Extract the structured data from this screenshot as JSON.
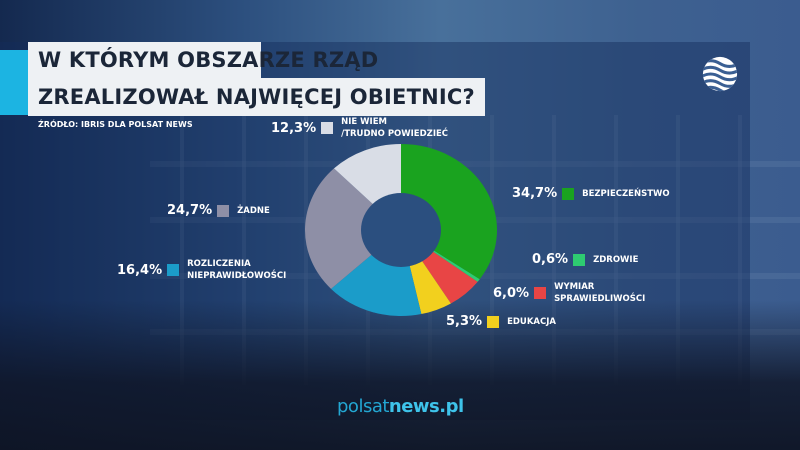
{
  "header": {
    "title_line1": "W KTÓRYM OBSZARZE RZĄD",
    "title_line2": "ZREALIZOWAŁ NAJWIĘCEJ OBIETNIC?",
    "source": "ŹRÓDŁO: IBRIS DLA POLSAT NEWS",
    "accent_color": "#1cb4e2",
    "logo_icon": "polsat-globe-icon"
  },
  "footer": {
    "brand_prefix": "polsat",
    "brand_suffix": "news.pl"
  },
  "legend": [
    {
      "pct": "12,3%",
      "label": "NIE WIEM\n/TRUDNO POWIEDZIEĆ",
      "color": "#d9dde6"
    },
    {
      "pct": "34,7%",
      "label": "BEZPIECZEŃSTWO",
      "color": "#1aa31f"
    },
    {
      "pct": "24,7%",
      "label": "ŻADNE",
      "color": "#8e8fa6"
    },
    {
      "pct": "16,4%",
      "label": "ROZLICZENIA\nNIEPRAWIDŁOWOŚCI",
      "color": "#1b9cc9"
    },
    {
      "pct": "0,6%",
      "label": "ZDROWIE",
      "color": "#2ecc71"
    },
    {
      "pct": "6,0%",
      "label": "WYMIAR\nSPRAWIEDLIWOŚCI",
      "color": "#e84545"
    },
    {
      "pct": "5,3%",
      "label": "EDUKACJA",
      "color": "#f2d01e"
    }
  ],
  "chart_data": {
    "type": "pie",
    "subtype": "donut",
    "title": "W KTÓRYM OBSZARZE RZĄD ZREALIZOWAŁ NAJWIĘCEJ OBIETNIC?",
    "source": "ŹRÓDŁO: IBRIS DLA POLSAT NEWS",
    "categories": [
      "BEZPIECZEŃSTWO",
      "ZDROWIE",
      "WYMIAR SPRAWIEDLIWOŚCI",
      "EDUKACJA",
      "ROZLICZENIA NIEPRAWIDŁOWOŚCI",
      "ŻADNE",
      "NIE WIEM /TRUDNO POWIEDZIEĆ"
    ],
    "values": [
      34.7,
      0.6,
      6.0,
      5.3,
      16.4,
      24.7,
      12.3
    ],
    "colors": [
      "#1aa31f",
      "#2ecc71",
      "#e84545",
      "#f2d01e",
      "#1b9cc9",
      "#8e8fa6",
      "#d9dde6"
    ],
    "unit": "%",
    "start_angle": "top, clockwise"
  }
}
